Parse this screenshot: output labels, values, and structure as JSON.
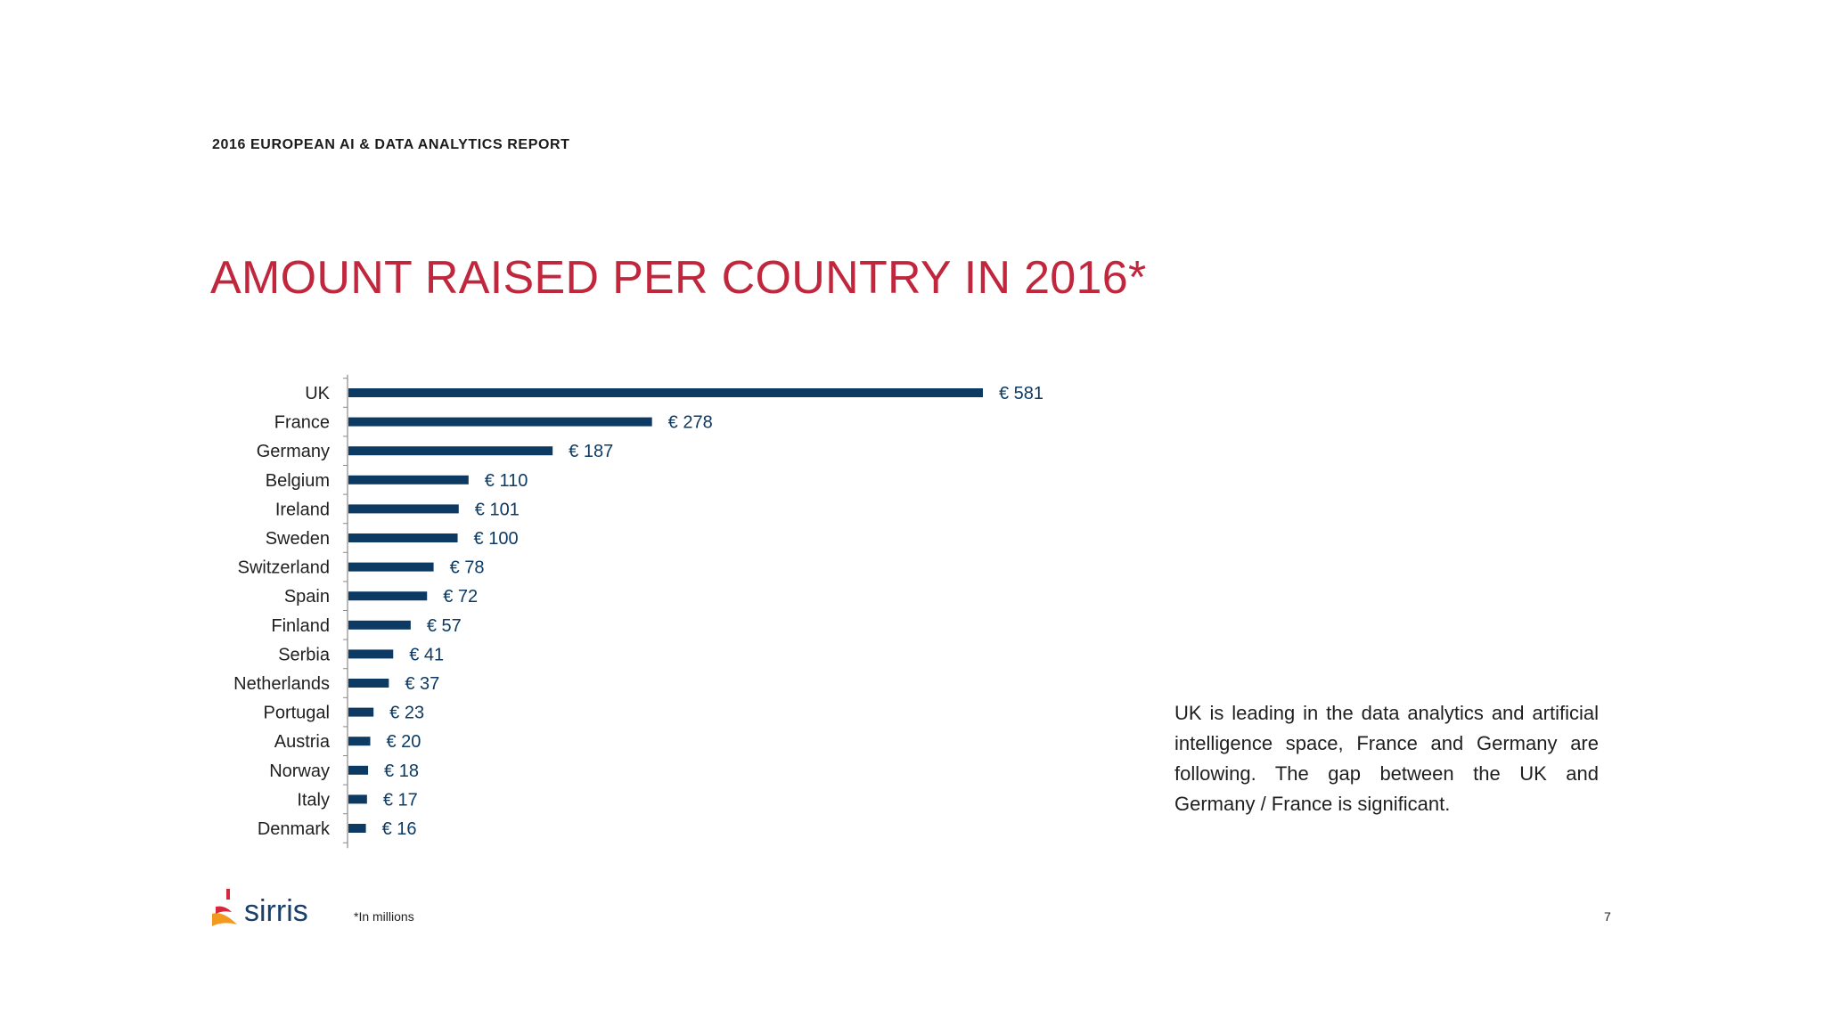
{
  "header": {
    "report_label": "2016 EUROPEAN AI & DATA ANALYTICS REPORT",
    "title": "AMOUNT RAISED PER COUNTRY IN 2016*"
  },
  "chart_data": {
    "type": "bar",
    "orientation": "horizontal",
    "categories": [
      "UK",
      "France",
      "Germany",
      "Belgium",
      "Ireland",
      "Sweden",
      "Switzerland",
      "Spain",
      "Finland",
      "Serbia",
      "Netherlands",
      "Portugal",
      "Austria",
      "Norway",
      "Italy",
      "Denmark"
    ],
    "values": [
      581,
      278,
      187,
      110,
      101,
      100,
      78,
      72,
      57,
      41,
      37,
      23,
      20,
      18,
      17,
      16
    ],
    "value_labels": [
      "€ 581",
      "€ 278",
      "€ 187",
      "€ 110",
      "€ 101",
      "€ 100",
      "€ 78",
      "€ 72",
      "€ 57",
      "€ 41",
      "€ 37",
      "€ 23",
      "€ 20",
      "€ 18",
      "€ 17",
      "€ 16"
    ],
    "bar_color": "#0d3a63",
    "label_color": "#0d3a63",
    "grid": false,
    "xlim": [
      0,
      581
    ]
  },
  "commentary": "UK is leading in the data analytics and artificial intelligence space, France and Germany are following. The gap between the UK and Germany / France is significant.",
  "footer": {
    "logo_text": "sirris",
    "footnote": "*In millions",
    "page_number": "7"
  },
  "colors": {
    "title": "#c0273d",
    "logo_blue": "#1b3f6b",
    "logo_red": "#d6283b",
    "logo_orange": "#f29a1f"
  }
}
